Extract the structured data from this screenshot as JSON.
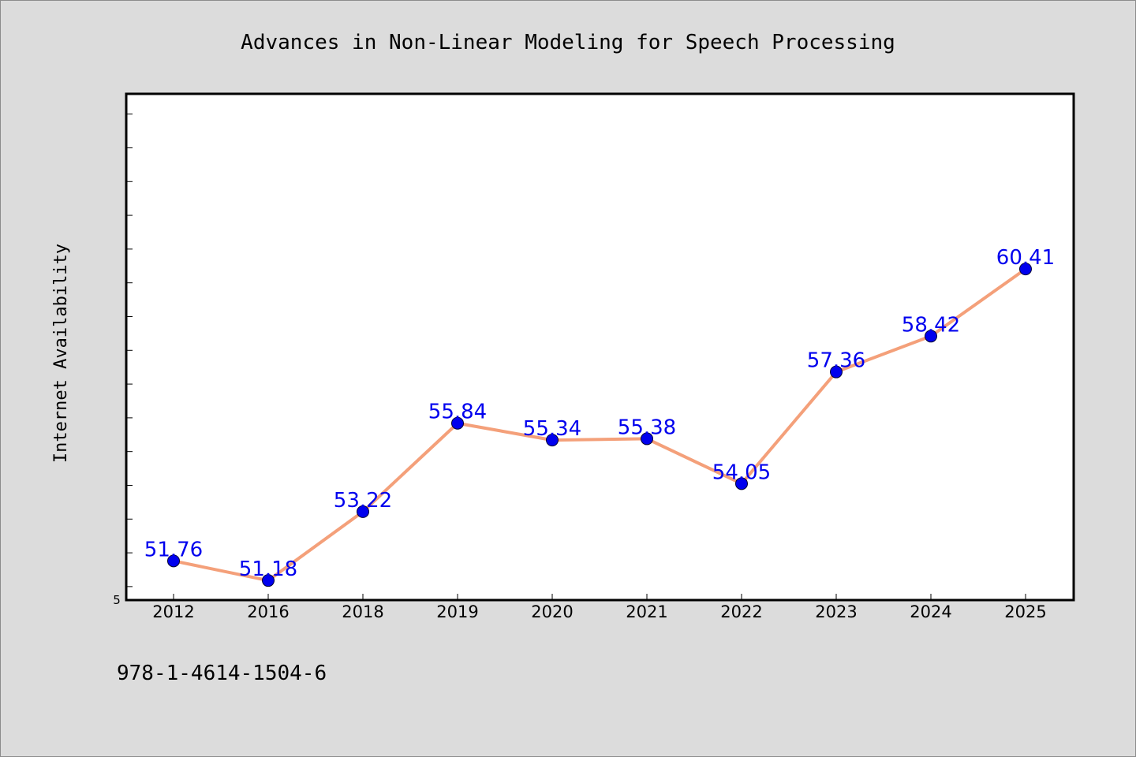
{
  "chart_data": {
    "type": "line",
    "title": "Advances in Non-Linear Modeling for Speech Processing",
    "xlabel": "",
    "ylabel": "Internet Availability",
    "categories": [
      "2012",
      "2016",
      "2018",
      "2019",
      "2020",
      "2021",
      "2022",
      "2023",
      "2024",
      "2025"
    ],
    "series": [
      {
        "values": [
          51.76,
          51.18,
          53.22,
          55.84,
          55.34,
          55.38,
          54.05,
          57.36,
          58.42,
          60.41
        ],
        "data_labels": [
          "51.76",
          "51.18",
          "53.22",
          "55.84",
          "55.34",
          "55.38",
          "54.05",
          "57.36",
          "58.42",
          "60.41"
        ]
      }
    ],
    "ylim": [
      50.6,
      65.6
    ],
    "ytick_values": [
      51,
      52,
      53,
      54,
      55,
      56,
      57,
      58,
      59,
      60,
      61,
      62,
      63,
      64,
      65
    ],
    "ytick_label_visible": "5",
    "grid": false,
    "legend": "none",
    "colors": {
      "line": "#f4a07a",
      "marker": "#0000ee",
      "label": "#0000ee",
      "plot_bg": "#ffffff",
      "page_bg": "#dcdcdc"
    }
  },
  "footer": {
    "isbn": "978-1-4614-1504-6"
  }
}
